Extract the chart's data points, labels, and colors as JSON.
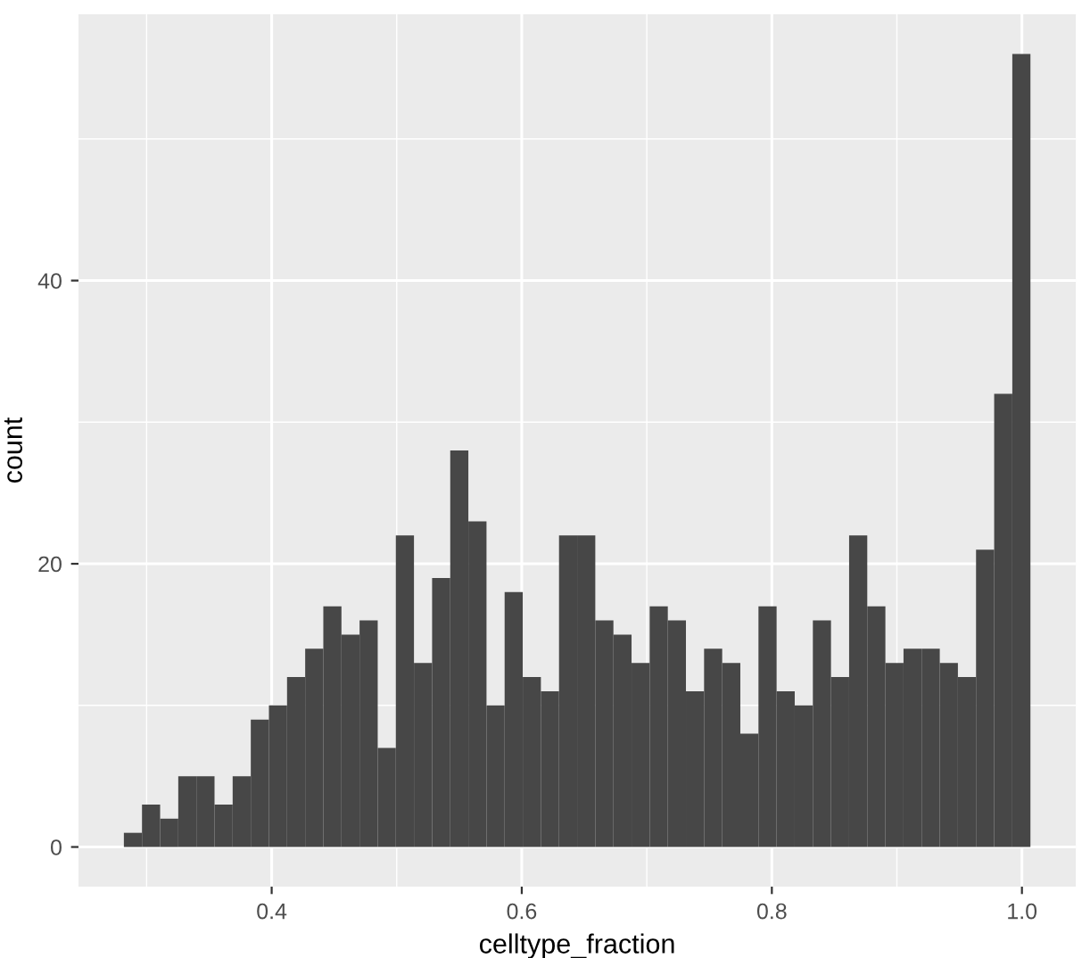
{
  "chart_data": {
    "type": "histogram",
    "xlabel": "celltype_fraction",
    "ylabel": "count",
    "color": "#474747",
    "bins": [
      0.2818,
      0.2963,
      0.3108,
      0.3253,
      0.3398,
      0.3543,
      0.3688,
      0.3833,
      0.3978,
      0.4123,
      0.4268,
      0.4413,
      0.4558,
      0.4703,
      0.4848,
      0.4993,
      0.5138,
      0.5283,
      0.5428,
      0.5573,
      0.5718,
      0.5863,
      0.6008,
      0.6153,
      0.6298,
      0.6443,
      0.6588,
      0.6733,
      0.6878,
      0.7023,
      0.7168,
      0.7313,
      0.7458,
      0.7603,
      0.7748,
      0.7893,
      0.8038,
      0.8183,
      0.8328,
      0.8473,
      0.8618,
      0.8763,
      0.8908,
      0.9053,
      0.9198,
      0.9343,
      0.9488,
      0.9633,
      0.9778,
      0.9923,
      1.0068
    ],
    "values": [
      1,
      3,
      2,
      5,
      5,
      3,
      5,
      9,
      10,
      12,
      14,
      17,
      15,
      16,
      7,
      22,
      13,
      19,
      28,
      23,
      10,
      18,
      12,
      11,
      22,
      22,
      16,
      15,
      13,
      17,
      16,
      11,
      14,
      13,
      8,
      17,
      11,
      10,
      16,
      12,
      22,
      17,
      13,
      14,
      14,
      13,
      12,
      21,
      32,
      56
    ],
    "xlim": [
      0.2455,
      1.0431
    ],
    "ylim": [
      -2.8,
      58.8
    ],
    "xticks": [
      0.4,
      0.6,
      0.8,
      {
        "value": 1.0,
        "label": "1.0"
      }
    ],
    "yticks": [
      0,
      20,
      40
    ],
    "grid": true,
    "legend": false
  }
}
